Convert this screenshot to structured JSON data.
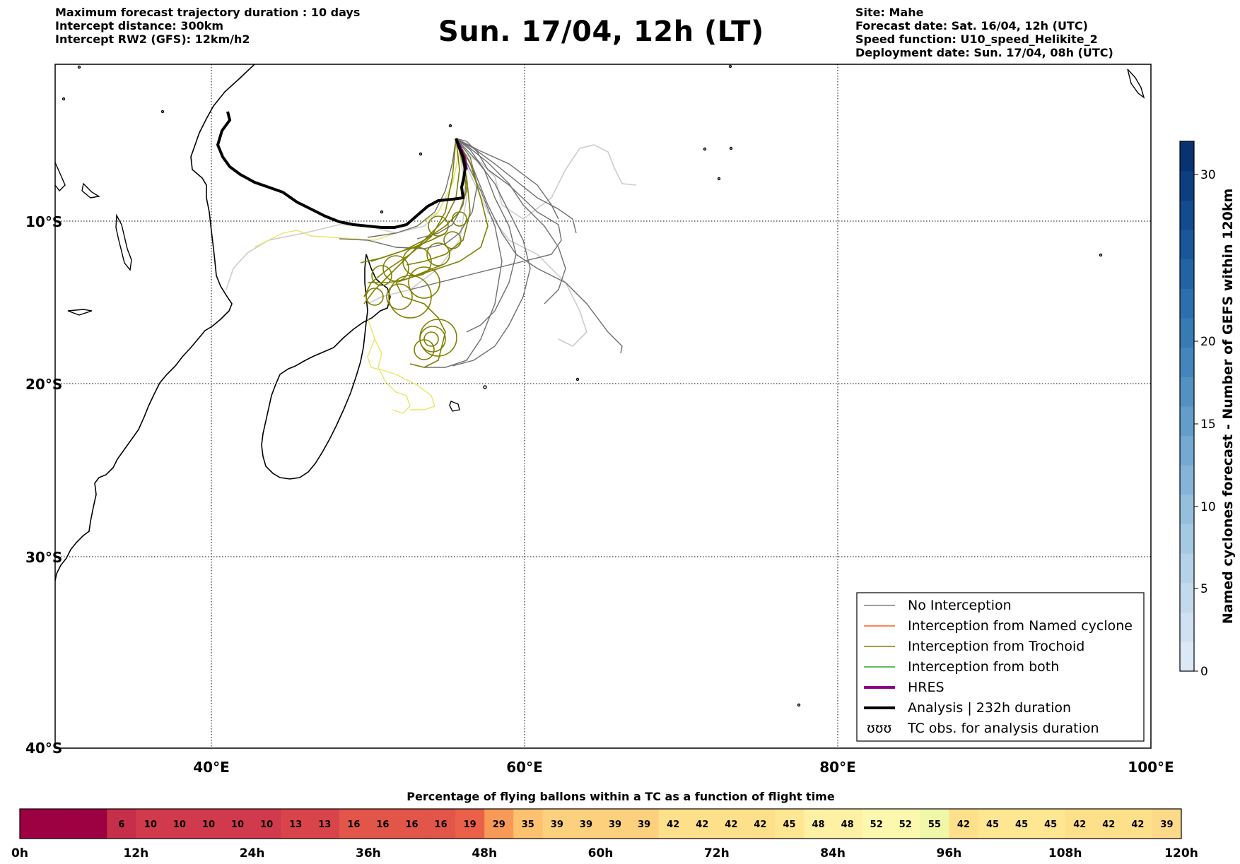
{
  "header_left": {
    "line1": "Maximum forecast trajectory duration : 10 days",
    "line2": "Intercept distance: 300km",
    "line3": "Intercept RW2 (GFS):  12km/h2"
  },
  "title": "Sun. 17/04, 12h (LT)",
  "header_right": {
    "line1": "Site: Mahe",
    "line2": "Forecast date: Sat. 16/04, 12h (UTC)",
    "line3": "Speed function: U10_speed_Helikite_2",
    "line4": "Deployment date: Sun. 17/04, 08h (UTC)"
  },
  "map": {
    "lon_range": [
      30,
      100
    ],
    "lat_range": [
      -40,
      0
    ],
    "lon_labels": [
      "40°E",
      "60°E",
      "80°E",
      "100°E"
    ],
    "lat_labels": [
      "10°S",
      "20°S",
      "30°S",
      "40°S"
    ],
    "grid": "dotted"
  },
  "legend": {
    "items": [
      {
        "label": "No Interception",
        "color": "#7f7f7f",
        "style": "thin"
      },
      {
        "label": "Interception from Named cyclone",
        "color": "#ff5a1a",
        "style": "thin"
      },
      {
        "label": "Interception from Trochoid",
        "color": "#808000",
        "style": "thin"
      },
      {
        "label": "Interception from both",
        "color": "#2ca02c",
        "style": "thin"
      },
      {
        "label": "HRES",
        "color": "#8b008b",
        "style": "thick"
      },
      {
        "label": "Analysis | 232h duration",
        "color": "#000000",
        "style": "thick"
      },
      {
        "label": "TC obs. for analysis duration",
        "color": "#000000",
        "style": "symbol",
        "symbol": "ὢὢὢ"
      }
    ]
  },
  "colorbar": {
    "title": "Named cyclones forecast - Number of GEFS within 120km",
    "ticks": [
      "0",
      "5",
      "10",
      "15",
      "20",
      "30"
    ],
    "colors": [
      "#dbe9f6",
      "#cfe1f2",
      "#c3d9ee",
      "#b5d2e9",
      "#a6c9e3",
      "#96bfde",
      "#85b4d8",
      "#74a9d2",
      "#639dca",
      "#5391c3",
      "#4486bc",
      "#377bb5",
      "#2c6fad",
      "#2263a4",
      "#19579a",
      "#124b8e",
      "#0c3f80",
      "#083370"
    ]
  },
  "ballon_bar": {
    "title": "Percentage of flying ballons within a TC as a function of flight time",
    "values": [
      "",
      "",
      "",
      "6",
      "10",
      "10",
      "10",
      "10",
      "10",
      "13",
      "13",
      "16",
      "16",
      "16",
      "16",
      "19",
      "29",
      "35",
      "39",
      "39",
      "39",
      "39",
      "42",
      "42",
      "42",
      "42",
      "45",
      "48",
      "48",
      "52",
      "52",
      "55",
      "42",
      "45",
      "45",
      "45",
      "42",
      "42",
      "42",
      "39"
    ],
    "colors": [
      "#9e0142",
      "#9e0142",
      "#9e0142",
      "#c62f4a",
      "#d13a4c",
      "#d13a4c",
      "#d13a4c",
      "#d13a4c",
      "#d13a4c",
      "#d9444b",
      "#d9444b",
      "#e25549",
      "#e25549",
      "#e25549",
      "#e25549",
      "#ea6048",
      "#f89a57",
      "#fdc16f",
      "#fdd07e",
      "#fdd07e",
      "#fdd07e",
      "#fdd07e",
      "#fee08b",
      "#fee08b",
      "#fee08b",
      "#fee08b",
      "#fee692",
      "#fff1a3",
      "#fff1a3",
      "#fcf8ad",
      "#fcf8ad",
      "#f0f8a8",
      "#fee08b",
      "#fee692",
      "#fee692",
      "#fee692",
      "#fee08b",
      "#fee08b",
      "#fee08b",
      "#fdd98a"
    ],
    "ticks": [
      "0h",
      "12h",
      "24h",
      "36h",
      "48h",
      "60h",
      "72h",
      "84h",
      "96h",
      "108h",
      "120h"
    ]
  }
}
